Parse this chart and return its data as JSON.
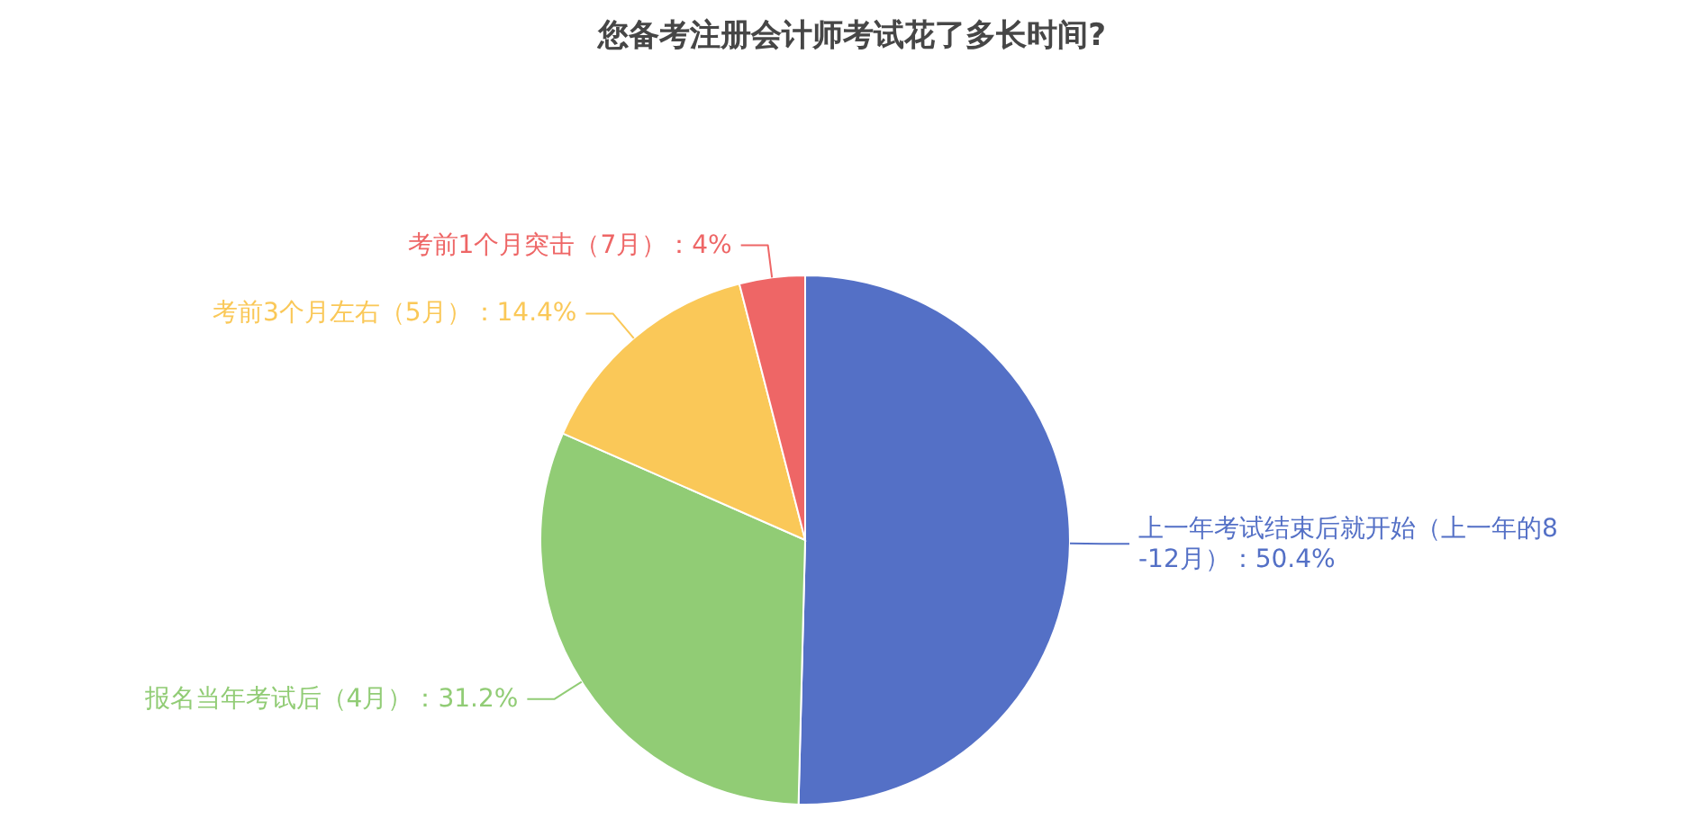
{
  "chart_data": {
    "type": "pie",
    "title": "您备考注册会计师考试花了多长时间?",
    "categories": [
      "上一年考试结束后就开始（上一年的8-12月）",
      "报名当年考试后（4月）",
      "考前3个月左右（5月）",
      "考前1个月突击（7月）"
    ],
    "values": [
      50.4,
      31.2,
      14.4,
      4
    ],
    "colors": [
      "#5470c6",
      "#91cc75",
      "#fac858",
      "#ee6666"
    ],
    "value_labels": [
      "：50.4%",
      "：31.2%",
      "：14.4%",
      "：4%"
    ]
  }
}
